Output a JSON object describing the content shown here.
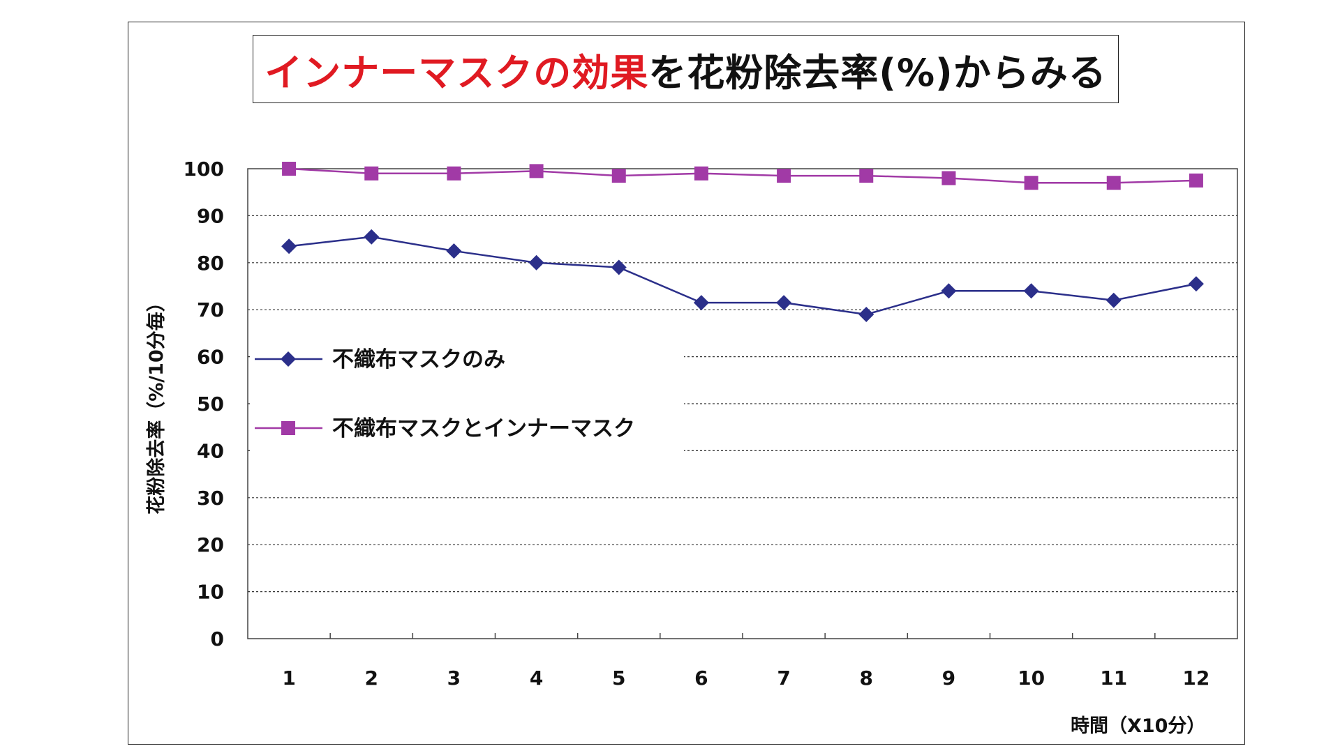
{
  "title": {
    "part1": "インナーマスクの効果",
    "part2": "を花粉除去率(%)からみる",
    "part1_color": "#e01a22",
    "part2_color": "#111111"
  },
  "chart_data": {
    "type": "line",
    "categories": [
      "1",
      "2",
      "3",
      "4",
      "5",
      "6",
      "7",
      "8",
      "9",
      "10",
      "11",
      "12"
    ],
    "series": [
      {
        "name": "不織布マスクのみ",
        "values": [
          83.5,
          85.5,
          82.5,
          80,
          79,
          71.5,
          71.5,
          69,
          74,
          74,
          72,
          75.5
        ],
        "color": "#2b2f8a",
        "marker": "diamond"
      },
      {
        "name": "不織布マスクとインナーマスク",
        "values": [
          100,
          99,
          99,
          99.5,
          98.5,
          99,
          98.5,
          98.5,
          98,
          97,
          97,
          97.5
        ],
        "color": "#a13aa6",
        "marker": "square"
      }
    ],
    "ylabel": "花粉除去率（%/10分毎）",
    "xlabel": "時間（X10分）",
    "ylim": [
      0,
      100
    ],
    "yticks": [
      "0",
      "10",
      "20",
      "30",
      "40",
      "50",
      "60",
      "70",
      "80",
      "90",
      "100"
    ],
    "grid": true,
    "legend_position": "left-middle"
  }
}
